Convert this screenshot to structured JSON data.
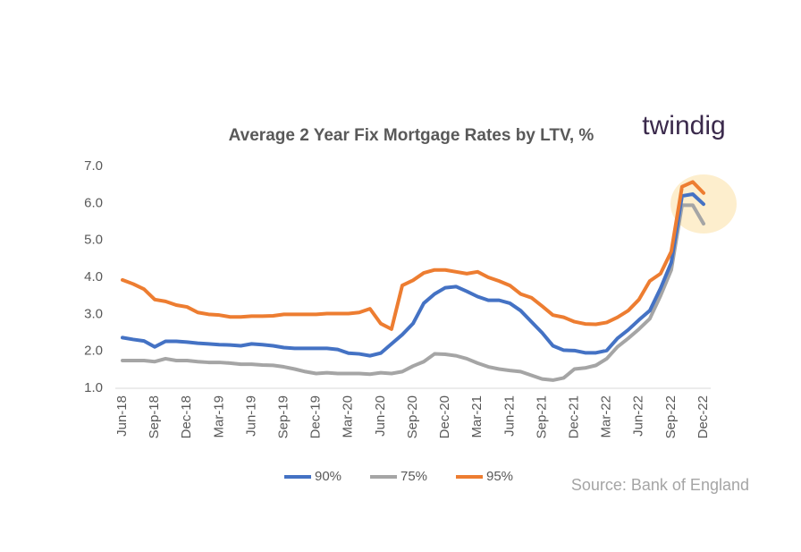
{
  "chart_data": {
    "type": "line",
    "title": "Average 2 Year Fix Mortgage Rates by LTV, %",
    "brand": "twindig",
    "source": "Source: Bank of England",
    "categories": [
      "Jun-18",
      null,
      null,
      "Sep-18",
      null,
      null,
      "Dec-18",
      null,
      null,
      "Mar-19",
      null,
      null,
      "Jun-19",
      null,
      null,
      "Sep-19",
      null,
      null,
      "Dec-19",
      null,
      null,
      "Mar-20",
      null,
      null,
      "Jun-20",
      null,
      null,
      "Sep-20",
      null,
      null,
      "Dec-20",
      null,
      null,
      "Mar-21",
      null,
      null,
      "Jun-21",
      null,
      null,
      "Sep-21",
      null,
      null,
      "Dec-21",
      null,
      null,
      "Mar-22",
      null,
      null,
      "Jun-22",
      null,
      null,
      "Sep-22",
      null,
      null,
      "Dec-22"
    ],
    "series": [
      {
        "name": "90%",
        "color": "#4472c4",
        "values": [
          2.37,
          2.32,
          2.28,
          2.12,
          2.27,
          2.27,
          2.25,
          2.22,
          2.2,
          2.18,
          2.17,
          2.15,
          2.2,
          2.18,
          2.15,
          2.1,
          2.08,
          2.08,
          2.08,
          2.08,
          2.05,
          1.95,
          1.93,
          1.88,
          1.95,
          2.2,
          2.45,
          2.75,
          3.3,
          3.55,
          3.72,
          3.75,
          3.62,
          3.48,
          3.38,
          3.38,
          3.3,
          3.1,
          2.8,
          2.5,
          2.15,
          2.03,
          2.02,
          1.96,
          1.96,
          2.02,
          2.35,
          2.58,
          2.85,
          3.1,
          3.7,
          4.4,
          6.2,
          6.25,
          5.98
        ]
      },
      {
        "name": "75%",
        "color": "#a5a5a5",
        "values": [
          1.75,
          1.75,
          1.75,
          1.72,
          1.8,
          1.75,
          1.75,
          1.72,
          1.7,
          1.7,
          1.68,
          1.65,
          1.65,
          1.63,
          1.62,
          1.58,
          1.52,
          1.45,
          1.4,
          1.42,
          1.4,
          1.4,
          1.4,
          1.38,
          1.42,
          1.4,
          1.45,
          1.6,
          1.72,
          1.93,
          1.92,
          1.88,
          1.8,
          1.68,
          1.58,
          1.52,
          1.48,
          1.45,
          1.35,
          1.25,
          1.22,
          1.28,
          1.52,
          1.55,
          1.62,
          1.8,
          2.12,
          2.35,
          2.6,
          2.88,
          3.5,
          4.2,
          5.95,
          5.95,
          5.45
        ]
      },
      {
        "name": "95%",
        "color": "#ed7d31",
        "values": [
          3.93,
          3.82,
          3.68,
          3.4,
          3.35,
          3.25,
          3.2,
          3.05,
          3.0,
          2.98,
          2.93,
          2.93,
          2.95,
          2.95,
          2.96,
          3.0,
          3.0,
          3.0,
          3.0,
          3.02,
          3.02,
          3.02,
          3.05,
          3.15,
          2.75,
          2.6,
          3.78,
          3.92,
          4.12,
          4.2,
          4.2,
          4.15,
          4.1,
          4.15,
          4.0,
          3.9,
          3.78,
          3.55,
          3.45,
          3.22,
          2.98,
          2.92,
          2.8,
          2.74,
          2.73,
          2.78,
          2.92,
          3.1,
          3.4,
          3.9,
          4.1,
          4.7,
          6.45,
          6.58,
          6.28
        ]
      }
    ],
    "ylim": [
      1,
      7
    ],
    "yticks": [
      {
        "value": 1,
        "label": "1.0"
      },
      {
        "value": 2,
        "label": "2.0"
      },
      {
        "value": 3,
        "label": "3.0"
      },
      {
        "value": 4,
        "label": "4.0"
      },
      {
        "value": 5,
        "label": "5.0"
      },
      {
        "value": 6,
        "label": "6.0"
      },
      {
        "value": 7,
        "label": "7.0"
      }
    ],
    "legend": "bottom"
  }
}
